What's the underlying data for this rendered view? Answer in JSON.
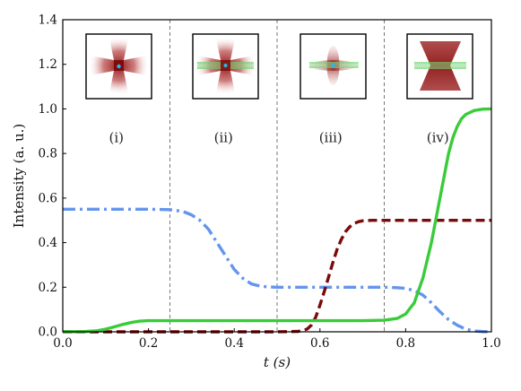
{
  "chart_data": {
    "type": "line",
    "title": "",
    "xlabel": "t (s)",
    "ylabel": "Intensity (a. u.)",
    "xlim": [
      0.0,
      1.0
    ],
    "ylim": [
      0.0,
      1.4
    ],
    "xticks": [
      "0.0",
      "0.2",
      "0.4",
      "0.6",
      "0.8",
      "1.0"
    ],
    "yticks": [
      "0.0",
      "0.2",
      "0.4",
      "0.6",
      "0.8",
      "1.0",
      "1.2",
      "1.4"
    ],
    "grid": false,
    "phase_boundaries": [
      0.25,
      0.5,
      0.75
    ],
    "phase_labels": [
      "(i)",
      "(ii)",
      "(iii)",
      "(iv)"
    ],
    "series": [
      {
        "style": "dash-dot",
        "color": "#6495ED",
        "x": [
          0.0,
          0.05,
          0.1,
          0.15,
          0.2,
          0.25,
          0.28,
          0.3,
          0.32,
          0.34,
          0.36,
          0.38,
          0.4,
          0.42,
          0.44,
          0.46,
          0.48,
          0.5,
          0.55,
          0.6,
          0.65,
          0.7,
          0.75,
          0.78,
          0.8,
          0.82,
          0.84,
          0.86,
          0.88,
          0.9,
          0.92,
          0.94,
          0.96,
          0.98,
          1.0
        ],
        "y": [
          0.55,
          0.55,
          0.55,
          0.55,
          0.55,
          0.548,
          0.54,
          0.525,
          0.5,
          0.46,
          0.4,
          0.34,
          0.28,
          0.24,
          0.215,
          0.205,
          0.201,
          0.2,
          0.2,
          0.2,
          0.2,
          0.2,
          0.2,
          0.198,
          0.195,
          0.185,
          0.165,
          0.13,
          0.09,
          0.055,
          0.03,
          0.012,
          0.004,
          0.001,
          0.0
        ]
      },
      {
        "style": "dashed",
        "color": "#7B0A0A",
        "x": [
          0.0,
          0.1,
          0.2,
          0.3,
          0.4,
          0.5,
          0.55,
          0.57,
          0.58,
          0.59,
          0.6,
          0.61,
          0.62,
          0.63,
          0.64,
          0.65,
          0.66,
          0.67,
          0.68,
          0.69,
          0.7,
          0.72,
          0.75,
          0.8,
          0.9,
          1.0
        ],
        "y": [
          0.0,
          0.0,
          0.0,
          0.0,
          0.0,
          0.0,
          0.002,
          0.012,
          0.03,
          0.065,
          0.12,
          0.18,
          0.245,
          0.31,
          0.37,
          0.415,
          0.45,
          0.472,
          0.486,
          0.494,
          0.498,
          0.5,
          0.5,
          0.5,
          0.5,
          0.5
        ]
      },
      {
        "style": "solid",
        "color": "#3ACB3A",
        "x": [
          0.0,
          0.05,
          0.08,
          0.1,
          0.12,
          0.14,
          0.16,
          0.18,
          0.2,
          0.25,
          0.3,
          0.4,
          0.5,
          0.6,
          0.7,
          0.75,
          0.78,
          0.8,
          0.82,
          0.84,
          0.86,
          0.87,
          0.88,
          0.89,
          0.9,
          0.91,
          0.92,
          0.93,
          0.94,
          0.96,
          0.98,
          1.0
        ],
        "y": [
          0.0,
          0.001,
          0.005,
          0.012,
          0.022,
          0.033,
          0.042,
          0.048,
          0.05,
          0.05,
          0.05,
          0.05,
          0.05,
          0.05,
          0.05,
          0.052,
          0.06,
          0.08,
          0.13,
          0.24,
          0.4,
          0.5,
          0.6,
          0.7,
          0.8,
          0.87,
          0.92,
          0.955,
          0.975,
          0.993,
          0.999,
          1.0
        ]
      }
    ]
  }
}
